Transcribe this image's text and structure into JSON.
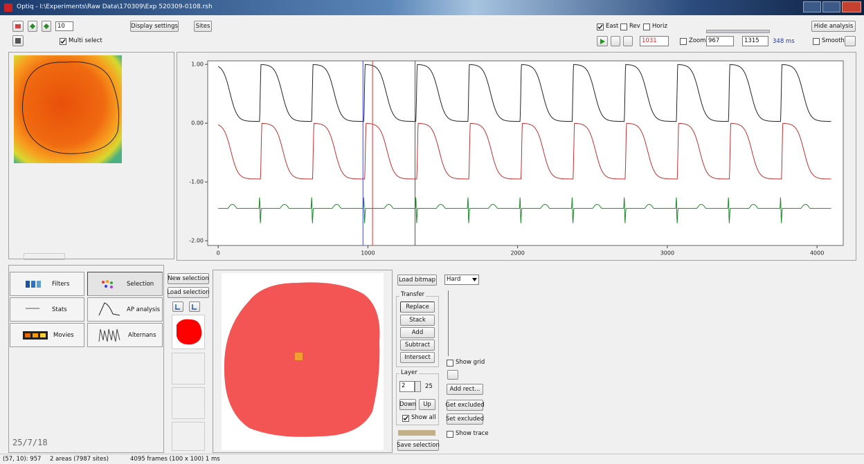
{
  "title_bar": {
    "title": "Optiq - I:\\Experiments\\Raw Data\\170309\\Exp 520309-0108.rsh"
  },
  "toolbar": {
    "step": 10,
    "display_settings": "Display settings",
    "sites": "Sites",
    "multi_select": "Multi select",
    "east": "East",
    "rev": "Rev",
    "horiz": "Horiz",
    "cursor": 1031,
    "zoom": "Zoom",
    "zoom_start": 967,
    "zoom_end": 1315,
    "zoom_width": "348 ms",
    "hide_analysis": "Hide analysis",
    "smooth": "Smooth"
  },
  "plot": {
    "xlim": [
      -70,
      4175
    ],
    "ylim": [
      -2.08,
      1.06
    ],
    "xticks": [
      0,
      1000,
      2000,
      3000,
      4000
    ],
    "yticks": [
      {
        "value": 1,
        "label": "1.00"
      },
      {
        "value": 0,
        "label": "0.00"
      },
      {
        "value": -1,
        "label": "-1.00"
      },
      {
        "value": -2,
        "label": "-2.00"
      }
    ]
  },
  "image_panel": {
    "date": "25/7/18"
  },
  "analysis_tabs": [
    "Filters",
    "Selection",
    "Stats",
    "AP analysis",
    "Movies",
    "Alternans"
  ],
  "selection": {
    "new_selection": "New selection",
    "load_selection": "Load selection"
  },
  "tools": {
    "load_bitmap": "Load bitmap",
    "mode": "Hard",
    "transfer": "Transfer",
    "replace": "Replace",
    "stack": "Stack",
    "add": "Add",
    "subtract": "Subtract",
    "intersect": "Intersect",
    "show_grid": "Show grid",
    "layer": "Layer",
    "layer_value": 2,
    "layer_max": 25,
    "down": "Down",
    "up": "Up",
    "show_all": "Show all",
    "add_rect": "Add rect...",
    "get_excluded": "Get excluded",
    "set_excluded": "Set excluded",
    "show_trace": "Show trace",
    "save_selection": "Save selection"
  },
  "status_bar": [
    "(57, 10): 957",
    "2 areas (7987 sites)",
    "4095 frames (100 x 100) 1 ms"
  ]
}
